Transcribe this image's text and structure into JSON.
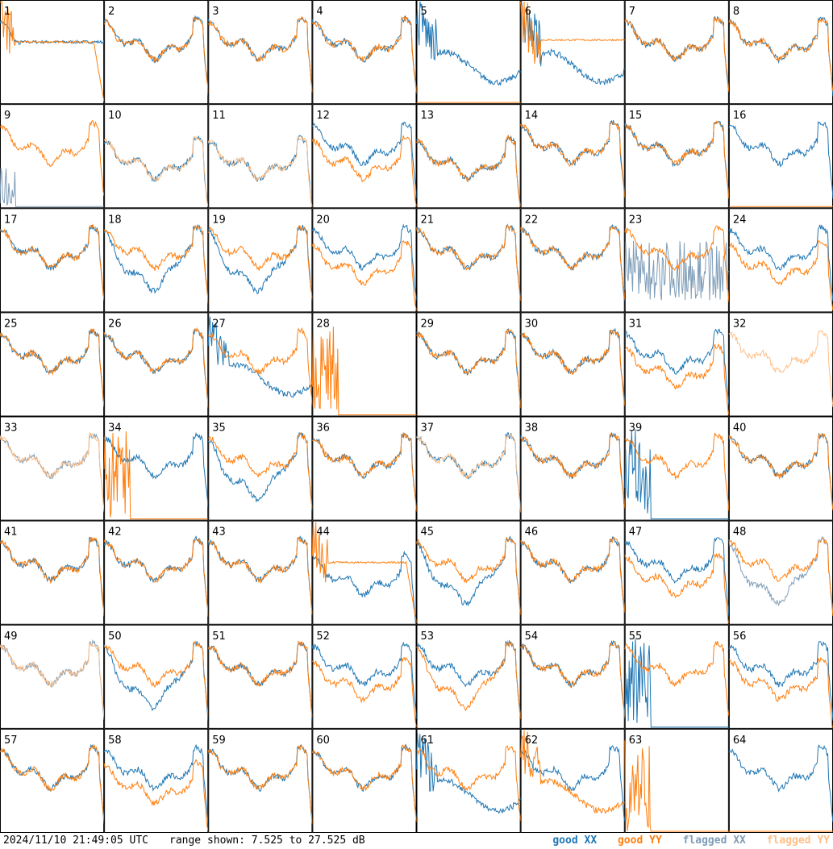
{
  "chart_data": {
    "type": "line",
    "panel_grid": {
      "rows": 8,
      "cols": 8
    },
    "y_range_db": [
      7.525,
      27.525
    ],
    "timestamp": "2024/11/10 21:49:05 UTC",
    "range_text": "range shown: 7.525 to 27.525 dB",
    "legend": [
      {
        "name": "good XX",
        "color": "#1f77b4"
      },
      {
        "name": "good YY",
        "color": "#ff7f0e"
      },
      {
        "name": "flagged XX",
        "color": "#7f9db8"
      },
      {
        "name": "flagged YY",
        "color": "#ffbf87"
      }
    ],
    "colors": {
      "good_xx": "#1f77b4",
      "good_yy": "#ff7f0e",
      "flagged_xx": "#7f9db8",
      "flagged_yy": "#ffbf87"
    },
    "panels": [
      {
        "label": "1",
        "xx": "sagH",
        "yy": "dropEarly",
        "spikes": 1
      },
      {
        "label": "2",
        "xx": "normal",
        "yy": "normal"
      },
      {
        "label": "3",
        "xx": "normal",
        "yy": "normal",
        "spikes": 1
      },
      {
        "label": "4",
        "xx": "normal",
        "yy": "normal"
      },
      {
        "label": "5",
        "xx": "deep",
        "yy": "flatzero"
      },
      {
        "label": "6",
        "xx": "deep",
        "yy": "high",
        "spikes": 1
      },
      {
        "label": "7",
        "xx": "normal",
        "yy": "normal",
        "spikes": 1
      },
      {
        "label": "8",
        "xx": "normal",
        "yy": "normal",
        "spikes": 1
      },
      {
        "label": "9",
        "xx": "flagdead",
        "yy": "normal",
        "xxflag": true
      },
      {
        "label": "10",
        "xx": "low",
        "yy": "low",
        "yyflag": true
      },
      {
        "label": "11",
        "xx": "low",
        "yy": "low",
        "yyflag": true
      },
      {
        "label": "12",
        "xx": "normal",
        "yy": "low",
        "spikes": 1
      },
      {
        "label": "13",
        "xx": "low",
        "yy": "low",
        "spikes": 1
      },
      {
        "label": "14",
        "xx": "normal",
        "yy": "normal"
      },
      {
        "label": "15",
        "xx": "normal",
        "yy": "normal"
      },
      {
        "label": "16",
        "xx": "normal",
        "yy": "flatzero"
      },
      {
        "label": "17",
        "xx": "normal",
        "yy": "normal"
      },
      {
        "label": "18",
        "xx": "sag",
        "yy": "normal"
      },
      {
        "label": "19",
        "xx": "sag",
        "yy": "normal"
      },
      {
        "label": "20",
        "xx": "normal",
        "yy": "low"
      },
      {
        "label": "21",
        "xx": "normal",
        "yy": "normal"
      },
      {
        "label": "22",
        "xx": "normal",
        "yy": "normal"
      },
      {
        "label": "23",
        "xx": "flagnoise",
        "yy": "normal",
        "xxflag": true
      },
      {
        "label": "24",
        "xx": "normal",
        "yy": "low"
      },
      {
        "label": "25",
        "xx": "normal",
        "yy": "normal"
      },
      {
        "label": "26",
        "xx": "normal",
        "yy": "normal"
      },
      {
        "label": "27",
        "xx": "deep",
        "yy": "normal",
        "spikes": 1
      },
      {
        "label": "28",
        "xx": "none",
        "yy": "spikedead"
      },
      {
        "label": "29",
        "xx": "normal",
        "yy": "normal"
      },
      {
        "label": "30",
        "xx": "normal",
        "yy": "normal"
      },
      {
        "label": "31",
        "xx": "normal",
        "yy": "low"
      },
      {
        "label": "32",
        "xx": "none",
        "yy": "normal",
        "yyflag": true
      },
      {
        "label": "33",
        "xx": "normal",
        "yy": "normal",
        "xxflag": true,
        "yyflag": true
      },
      {
        "label": "34",
        "xx": "normal",
        "yy": "spikedead"
      },
      {
        "label": "35",
        "xx": "sag",
        "yy": "normal"
      },
      {
        "label": "36",
        "xx": "normal",
        "yy": "normal"
      },
      {
        "label": "37",
        "xx": "normal",
        "yy": "normal",
        "yyflag": true
      },
      {
        "label": "38",
        "xx": "normal",
        "yy": "normal"
      },
      {
        "label": "39",
        "xx": "spikedead",
        "yy": "normal"
      },
      {
        "label": "40",
        "xx": "normal",
        "yy": "normal"
      },
      {
        "label": "41",
        "xx": "normal",
        "yy": "normal"
      },
      {
        "label": "42",
        "xx": "normal",
        "yy": "normal"
      },
      {
        "label": "43",
        "xx": "normal",
        "yy": "normal"
      },
      {
        "label": "44",
        "xx": "low",
        "yy": "dropEarly",
        "spikes": 1
      },
      {
        "label": "45",
        "xx": "sag",
        "yy": "normal",
        "spikes": 1
      },
      {
        "label": "46",
        "xx": "normal",
        "yy": "normal"
      },
      {
        "label": "47",
        "xx": "normal",
        "yy": "low",
        "spikes": 1
      },
      {
        "label": "48",
        "xx": "sag",
        "yy": "normal",
        "xxflag": true
      },
      {
        "label": "49",
        "xx": "normal",
        "yy": "normal",
        "xxflag": true,
        "yyflag": true
      },
      {
        "label": "50",
        "xx": "sag",
        "yy": "normal"
      },
      {
        "label": "51",
        "xx": "normal",
        "yy": "normal"
      },
      {
        "label": "52",
        "xx": "normal",
        "yy": "low"
      },
      {
        "label": "53",
        "xx": "normal",
        "yy": "sag",
        "spikes": 1
      },
      {
        "label": "54",
        "xx": "normal",
        "yy": "normal"
      },
      {
        "label": "55",
        "xx": "spikedead",
        "yy": "normal",
        "spikes": 1
      },
      {
        "label": "56",
        "xx": "normal",
        "yy": "low"
      },
      {
        "label": "57",
        "xx": "normal",
        "yy": "normal"
      },
      {
        "label": "58",
        "xx": "normal",
        "yy": "low"
      },
      {
        "label": "59",
        "xx": "normal",
        "yy": "normal"
      },
      {
        "label": "60",
        "xx": "normal",
        "yy": "normal"
      },
      {
        "label": "61",
        "xx": "deep",
        "yy": "normal",
        "spikes": 1
      },
      {
        "label": "62",
        "xx": "normal",
        "yy": "deep",
        "spikes": 1
      },
      {
        "label": "63",
        "xx": "none",
        "yy": "spikedead"
      },
      {
        "label": "64",
        "xx": "normal",
        "yy": "flatzero"
      }
    ]
  }
}
